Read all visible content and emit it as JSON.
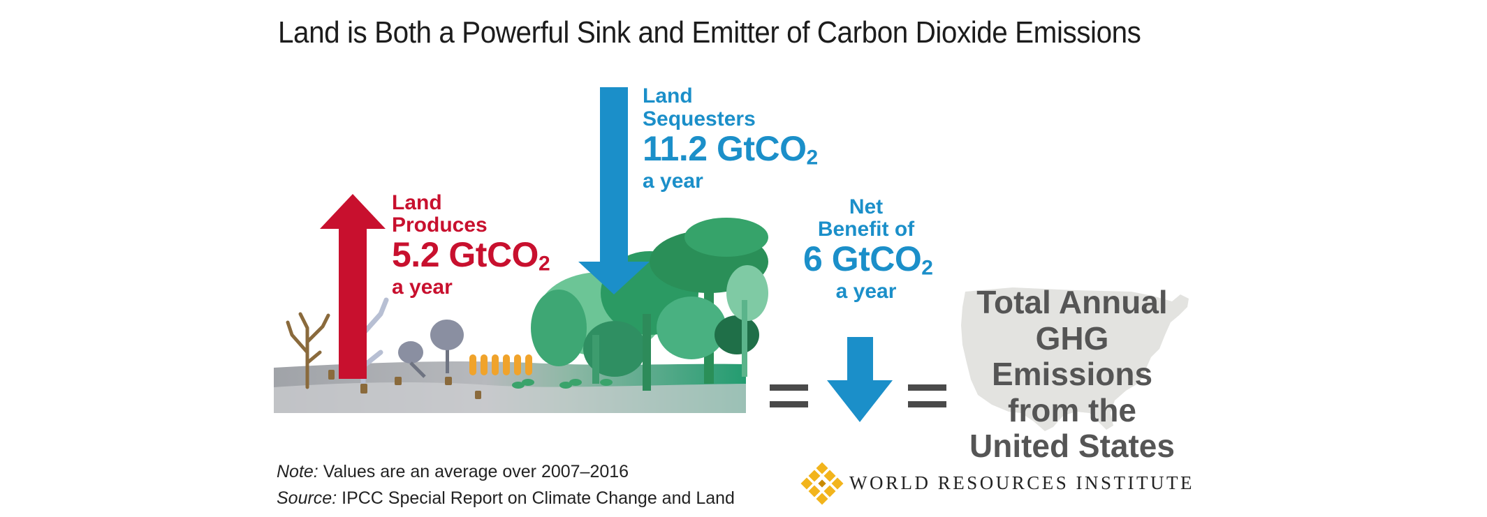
{
  "title": "Land is Both a Powerful Sink and Emitter of Carbon Dioxide Emissions",
  "produces": {
    "line1": "Land",
    "line2": "Produces",
    "value": "5.2 GtCO",
    "subscript": "2",
    "line4": "a year",
    "color": "#c8102e"
  },
  "sequesters": {
    "line1": "Land",
    "line2": "Sequesters",
    "value": "11.2 GtCO",
    "subscript": "2",
    "line4": "a year",
    "color": "#1b8fc9"
  },
  "net_benefit": {
    "line1": "Net",
    "line2": "Benefit of",
    "value": "6 GtCO",
    "subscript": "2",
    "line4": "a year",
    "color": "#1b8fc9"
  },
  "total": {
    "line1": "Total Annual",
    "line2": "GHG Emissions",
    "line3": "from the",
    "line4": "United States"
  },
  "footer": {
    "note_label": "Note:",
    "note_text": " Values are an average over 2007–2016",
    "source_label": "Source:",
    "source_text": " IPCC Special Report on Climate Change and Land",
    "org": "WORLD RESOURCES INSTITUTE"
  },
  "icons": [
    "up-arrow-icon",
    "down-arrow-icon",
    "equals-icon",
    "us-map-icon",
    "wri-logo-icon",
    "tree-icon",
    "wheat-icon"
  ],
  "colors": {
    "emit_red": "#c8102e",
    "sink_blue": "#1b8fc9",
    "map_gray": "#e3e3e0",
    "ground_gray": "#a4a6ab",
    "forest_green": "#2f9a6a",
    "wri_gold": "#f2b41c"
  }
}
